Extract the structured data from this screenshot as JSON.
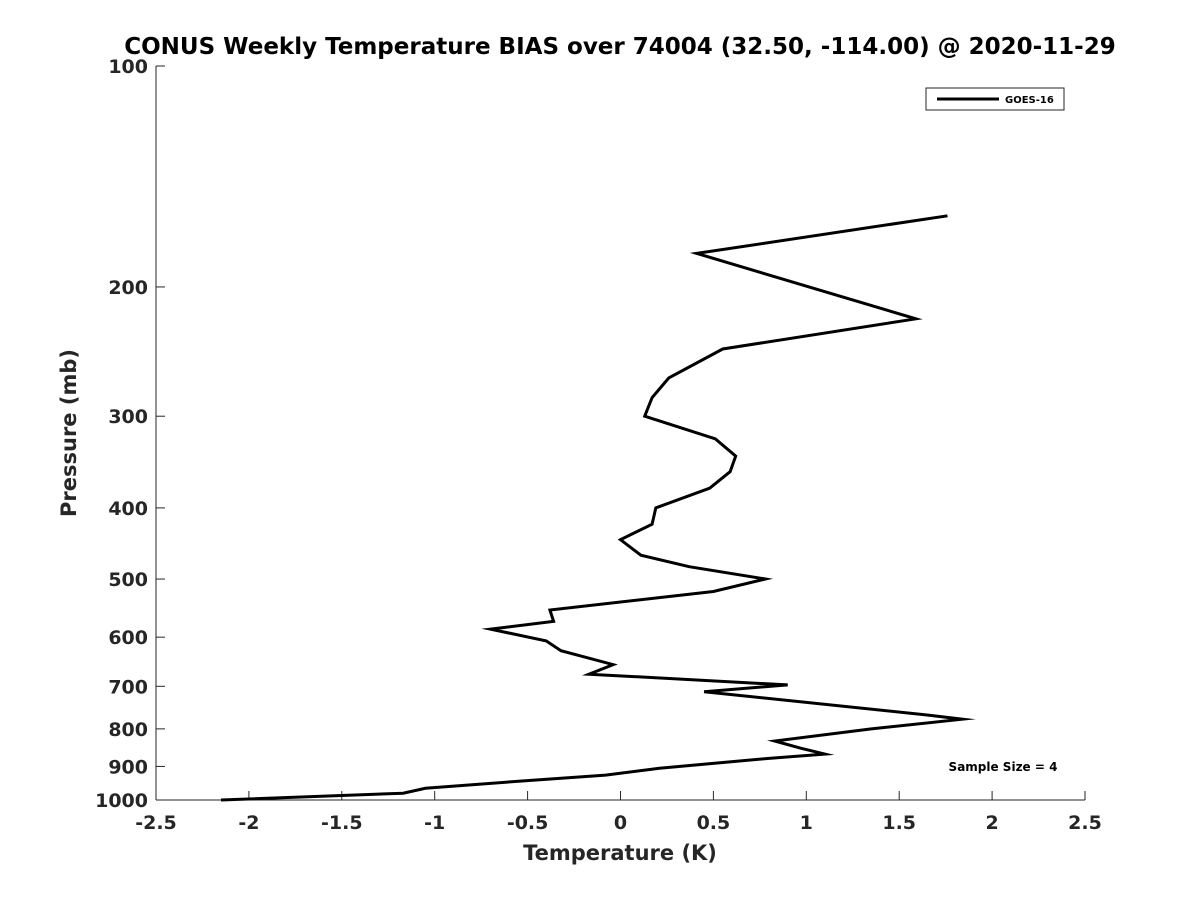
{
  "chart_data": {
    "type": "line",
    "title": "CONUS Weekly Temperature BIAS over 74004 (32.50, -114.00) @ 2020-11-29",
    "xlabel": "Temperature (K)",
    "ylabel": "Pressure (mb)",
    "xlim": [
      -2.5,
      2.5
    ],
    "ylim": [
      100,
      1000
    ],
    "y_scale": "log",
    "y_reversed": true,
    "grid": false,
    "legend_position": "top-right",
    "x_ticks": [
      "-2.5",
      "-2",
      "-1.5",
      "-1",
      "-0.5",
      "0",
      "0.5",
      "1",
      "1.5",
      "2",
      "2.5"
    ],
    "y_ticks": [
      "100",
      "200",
      "300",
      "400",
      "500",
      "600",
      "700",
      "800",
      "900",
      "1000"
    ],
    "series": [
      {
        "name": "GOES-16",
        "color": "#000000",
        "points": [
          {
            "x": 1.76,
            "y": 160
          },
          {
            "x": 0.41,
            "y": 180
          },
          {
            "x": 1.59,
            "y": 221
          },
          {
            "x": 0.55,
            "y": 243
          },
          {
            "x": 0.26,
            "y": 266
          },
          {
            "x": 0.17,
            "y": 283
          },
          {
            "x": 0.13,
            "y": 300
          },
          {
            "x": 0.51,
            "y": 322
          },
          {
            "x": 0.62,
            "y": 340
          },
          {
            "x": 0.59,
            "y": 357
          },
          {
            "x": 0.48,
            "y": 376
          },
          {
            "x": 0.19,
            "y": 400
          },
          {
            "x": 0.17,
            "y": 421
          },
          {
            "x": 0.0,
            "y": 442
          },
          {
            "x": 0.11,
            "y": 464
          },
          {
            "x": 0.37,
            "y": 481
          },
          {
            "x": 0.78,
            "y": 500
          },
          {
            "x": 0.5,
            "y": 520
          },
          {
            "x": -0.38,
            "y": 551
          },
          {
            "x": -0.36,
            "y": 571
          },
          {
            "x": -0.7,
            "y": 585
          },
          {
            "x": -0.4,
            "y": 607
          },
          {
            "x": -0.32,
            "y": 626
          },
          {
            "x": -0.04,
            "y": 654
          },
          {
            "x": -0.17,
            "y": 674
          },
          {
            "x": 0.9,
            "y": 697
          },
          {
            "x": 0.45,
            "y": 712
          },
          {
            "x": 1.65,
            "y": 766
          },
          {
            "x": 1.84,
            "y": 776
          },
          {
            "x": 1.35,
            "y": 800
          },
          {
            "x": 0.83,
            "y": 831
          },
          {
            "x": 0.97,
            "y": 850
          },
          {
            "x": 1.1,
            "y": 866
          },
          {
            "x": 0.79,
            "y": 878
          },
          {
            "x": 0.21,
            "y": 905
          },
          {
            "x": -0.08,
            "y": 925
          },
          {
            "x": -0.53,
            "y": 942
          },
          {
            "x": -1.05,
            "y": 964
          },
          {
            "x": -1.17,
            "y": 979
          },
          {
            "x": -2.15,
            "y": 1000
          }
        ]
      }
    ],
    "annotations": [
      {
        "text": "Sample Size = 4"
      }
    ]
  }
}
